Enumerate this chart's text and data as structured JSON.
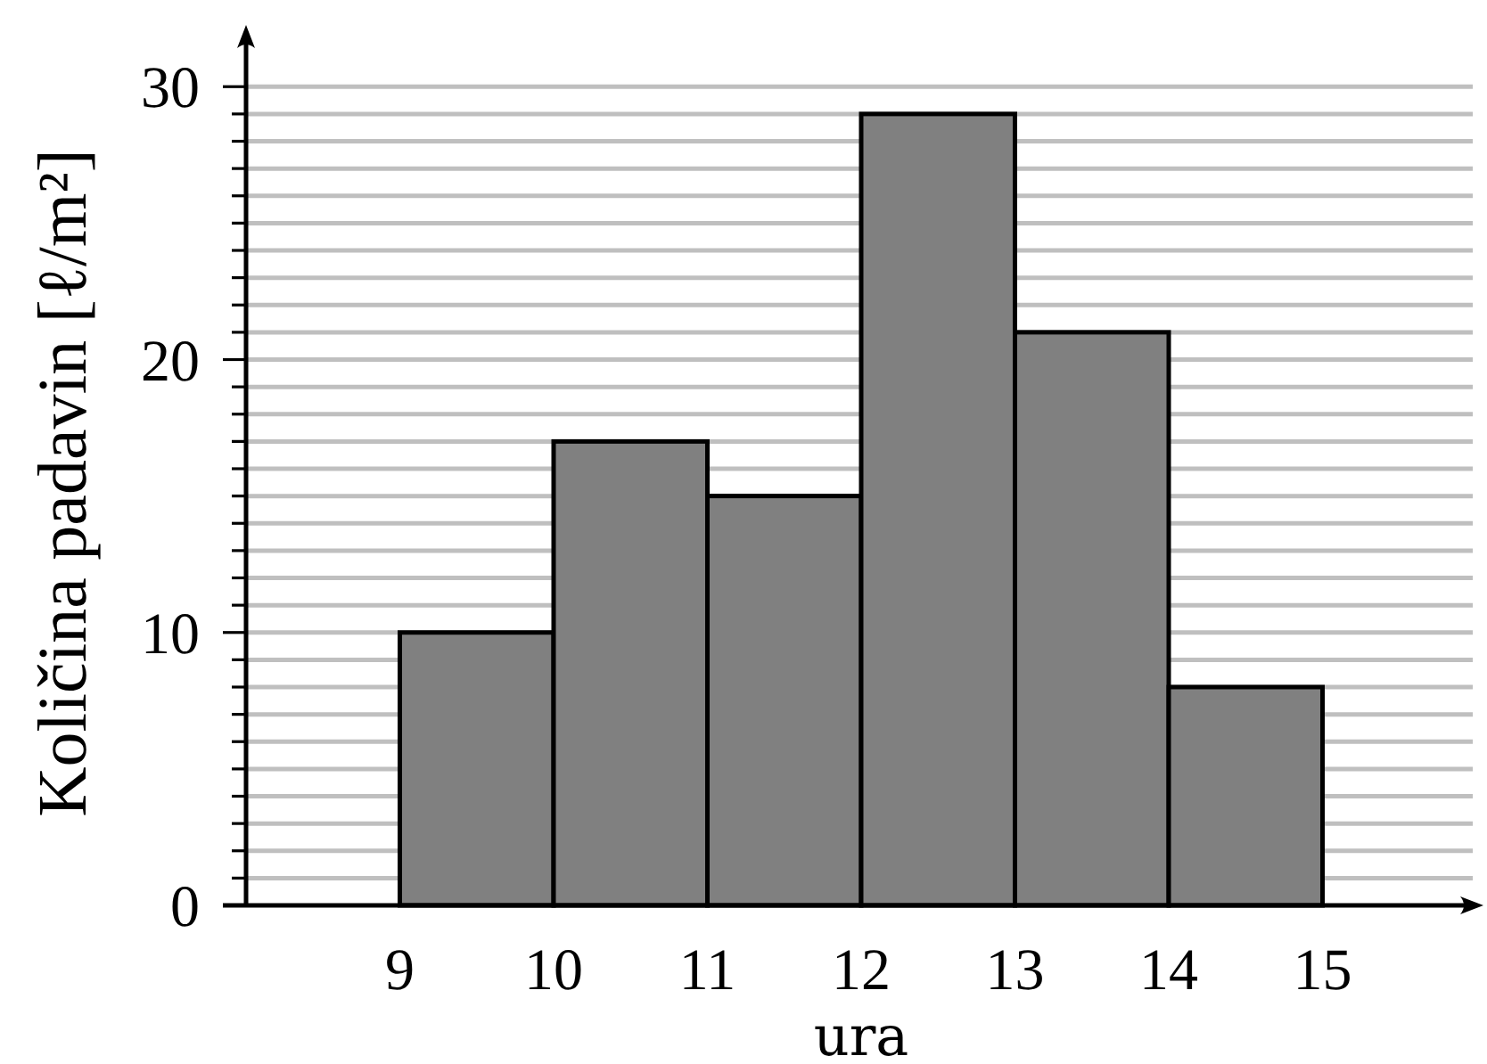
{
  "chart_data": {
    "type": "histogram",
    "xlabel": "ura",
    "ylabel": "Količina padavin [ℓ/m²]",
    "bins": [
      9,
      10,
      11,
      12,
      13,
      14,
      15
    ],
    "values": [
      10,
      17,
      15,
      29,
      21,
      8
    ],
    "color": "#808080",
    "xlim": [
      8,
      16
    ],
    "ylim": [
      0,
      32
    ],
    "xticks": [
      9,
      10,
      11,
      12,
      13,
      14,
      15
    ],
    "yticks": [
      0,
      {
        "value": 1,
        "label": null
      },
      {
        "value": 2,
        "label": null
      },
      {
        "value": 3,
        "label": null
      },
      {
        "value": 4,
        "label": null
      },
      {
        "value": 5,
        "label": null
      },
      {
        "value": 6,
        "label": null
      },
      {
        "value": 7,
        "label": null
      },
      {
        "value": 8,
        "label": null
      },
      {
        "value": 9,
        "label": null
      },
      10,
      {
        "value": 11,
        "label": null
      },
      {
        "value": 12,
        "label": null
      },
      {
        "value": 13,
        "label": null
      },
      {
        "value": 14,
        "label": null
      },
      {
        "value": 15,
        "label": null
      },
      {
        "value": 16,
        "label": null
      },
      {
        "value": 17,
        "label": null
      },
      {
        "value": 18,
        "label": null
      },
      {
        "value": 19,
        "label": null
      },
      20,
      {
        "value": 21,
        "label": null
      },
      {
        "value": 22,
        "label": null
      },
      {
        "value": 23,
        "label": null
      },
      {
        "value": 24,
        "label": null
      },
      {
        "value": 25,
        "label": null
      },
      {
        "value": 26,
        "label": null
      },
      {
        "value": 27,
        "label": null
      },
      {
        "value": 28,
        "label": null
      },
      {
        "value": 29,
        "label": null
      },
      30
    ],
    "grid": "y"
  }
}
